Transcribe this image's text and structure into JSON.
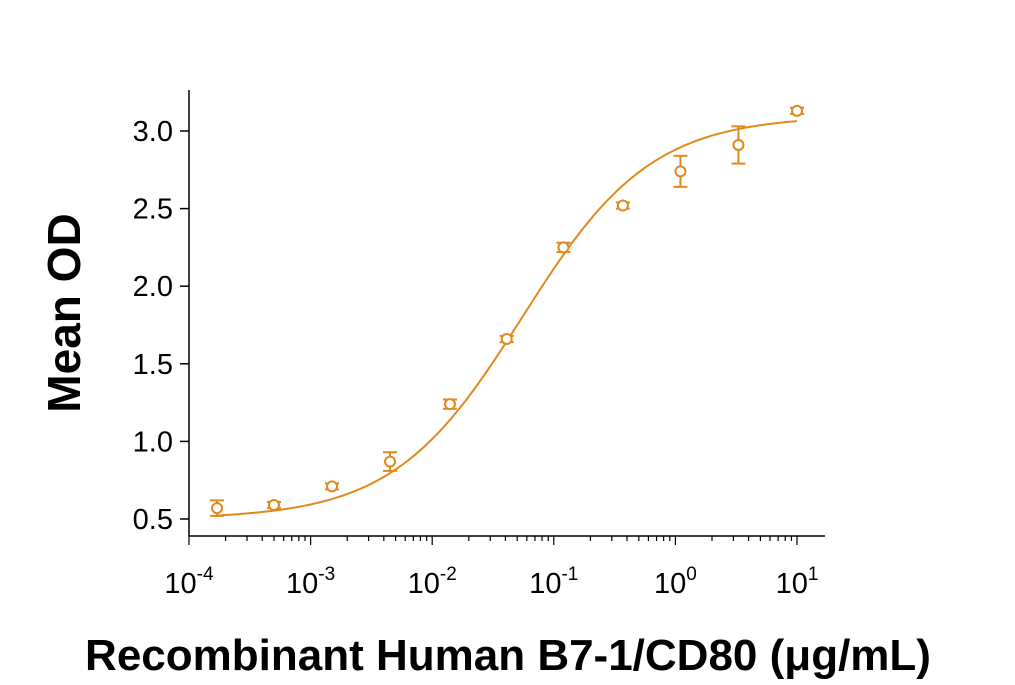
{
  "chart_data": {
    "type": "scatter",
    "xlabel": "Recombinant Human B7-1/CD80 (μg/mL)",
    "ylabel": "Mean OD",
    "x_scale": "log",
    "xlim": [
      0.0001,
      10
    ],
    "ylim": [
      0.4,
      3.3
    ],
    "x_ticks": [
      {
        "base": "10",
        "exp": "-4"
      },
      {
        "base": "10",
        "exp": "-3"
      },
      {
        "base": "10",
        "exp": "-2"
      },
      {
        "base": "10",
        "exp": "-1"
      },
      {
        "base": "10",
        "exp": "0"
      },
      {
        "base": "10",
        "exp": "1"
      }
    ],
    "y_ticks": [
      "0.5",
      "1.0",
      "1.5",
      "2.0",
      "2.5",
      "3.0"
    ],
    "grid": false,
    "legend": "none",
    "colors": {
      "series": "#E08A1E",
      "axis": "#000000"
    },
    "series": [
      {
        "marker": "open-circle",
        "points": [
          {
            "x": 0.00017,
            "y": 0.57,
            "err": 0.05
          },
          {
            "x": 0.0005,
            "y": 0.59,
            "err": 0.02
          },
          {
            "x": 0.0015,
            "y": 0.71,
            "err": 0.02
          },
          {
            "x": 0.0045,
            "y": 0.87,
            "err": 0.06
          },
          {
            "x": 0.014,
            "y": 1.24,
            "err": 0.03
          },
          {
            "x": 0.041,
            "y": 1.66,
            "err": 0.02
          },
          {
            "x": 0.12,
            "y": 2.25,
            "err": 0.03
          },
          {
            "x": 0.37,
            "y": 2.52,
            "err": 0.02
          },
          {
            "x": 1.1,
            "y": 2.74,
            "err": 0.1
          },
          {
            "x": 3.3,
            "y": 2.91,
            "err": 0.12
          },
          {
            "x": 10,
            "y": 3.13,
            "err": 0.02
          }
        ]
      }
    ],
    "fit": {
      "type": "4PL",
      "bottom": 0.5,
      "top": 3.1,
      "ec50": 0.055,
      "hill": 0.82
    }
  }
}
